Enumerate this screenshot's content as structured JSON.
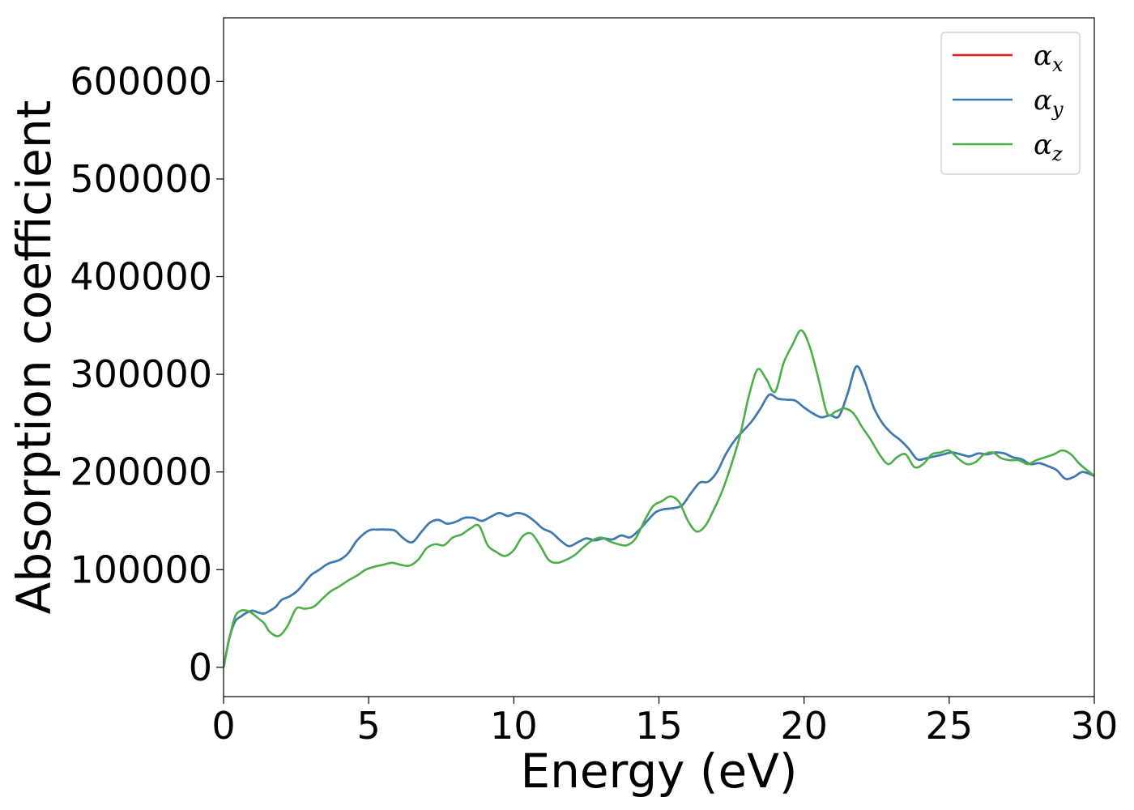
{
  "chart_data": {
    "type": "line",
    "xlabel": "Energy (eV)",
    "ylabel": "Absorption coefficient",
    "xlim": [
      0,
      30
    ],
    "ylim": [
      -30000,
      665000
    ],
    "xticks": [
      0,
      5,
      10,
      15,
      20,
      25,
      30
    ],
    "yticks": [
      0,
      100000,
      200000,
      300000,
      400000,
      500000,
      600000
    ],
    "grid": false,
    "legend_position": "top-right",
    "colors": {
      "x": "#e41a1c",
      "y": "#377eb8",
      "z": "#4daf4a"
    },
    "series": [
      {
        "name": "αx",
        "symbol": "α",
        "subscript": "x",
        "color": "#e41a1c",
        "x": [
          0,
          0.2,
          0.4,
          0.6,
          0.8,
          1.0,
          1.2,
          1.4,
          1.6,
          1.8,
          2.0,
          2.3,
          2.6,
          3.0,
          3.3,
          3.6,
          4.0,
          4.3,
          4.6,
          5.0,
          5.3,
          5.6,
          5.9,
          6.2,
          6.5,
          6.8,
          7.1,
          7.4,
          7.7,
          8.0,
          8.3,
          8.6,
          8.9,
          9.2,
          9.5,
          9.8,
          10.1,
          10.4,
          10.7,
          11.0,
          11.3,
          11.6,
          11.9,
          12.2,
          12.5,
          12.8,
          13.1,
          13.4,
          13.7,
          14.0,
          14.3,
          14.6,
          14.9,
          15.2,
          15.5,
          15.8,
          16.1,
          16.4,
          16.7,
          17.0,
          17.3,
          17.6,
          17.9,
          18.2,
          18.5,
          18.8,
          19.1,
          19.4,
          19.7,
          20.0,
          20.3,
          20.6,
          20.9,
          21.2,
          21.5,
          21.8,
          22.1,
          22.4,
          22.7,
          23.0,
          23.3,
          23.6,
          23.9,
          24.2,
          24.5,
          24.8,
          25.1,
          25.4,
          25.7,
          26.0,
          26.3,
          26.6,
          26.9,
          27.2,
          27.5,
          27.8,
          28.1,
          28.4,
          28.7,
          29.0,
          29.3,
          29.6,
          30.0
        ],
        "y": [
          0,
          30000,
          47000,
          52000,
          56000,
          58000,
          56000,
          55000,
          58000,
          62000,
          69000,
          73000,
          80000,
          94000,
          100000,
          106000,
          110000,
          117000,
          130000,
          140000,
          141000,
          141000,
          140000,
          132000,
          128000,
          138000,
          148000,
          151000,
          147000,
          149000,
          153000,
          153000,
          150000,
          154000,
          158000,
          155000,
          158000,
          156000,
          150000,
          142000,
          138000,
          130000,
          124000,
          128000,
          132000,
          130000,
          132000,
          131000,
          135000,
          133000,
          140000,
          150000,
          159000,
          162000,
          163000,
          166000,
          178000,
          189000,
          190000,
          200000,
          218000,
          232000,
          242000,
          252000,
          265000,
          279000,
          275000,
          274000,
          273000,
          266000,
          260000,
          256000,
          258000,
          257000,
          280000,
          308000,
          292000,
          266000,
          250000,
          240000,
          233000,
          224000,
          213000,
          214000,
          216000,
          218000,
          220000,
          218000,
          216000,
          219000,
          218000,
          220000,
          219000,
          215000,
          213000,
          208000,
          209000,
          206000,
          202000,
          193000,
          195000,
          200000,
          196000
        ]
      },
      {
        "name": "αy",
        "symbol": "α",
        "subscript": "y",
        "color": "#377eb8",
        "x": [
          0,
          0.2,
          0.4,
          0.6,
          0.8,
          1.0,
          1.2,
          1.4,
          1.6,
          1.8,
          2.0,
          2.3,
          2.6,
          3.0,
          3.3,
          3.6,
          4.0,
          4.3,
          4.6,
          5.0,
          5.3,
          5.6,
          5.9,
          6.2,
          6.5,
          6.8,
          7.1,
          7.4,
          7.7,
          8.0,
          8.3,
          8.6,
          8.9,
          9.2,
          9.5,
          9.8,
          10.1,
          10.4,
          10.7,
          11.0,
          11.3,
          11.6,
          11.9,
          12.2,
          12.5,
          12.8,
          13.1,
          13.4,
          13.7,
          14.0,
          14.3,
          14.6,
          14.9,
          15.2,
          15.5,
          15.8,
          16.1,
          16.4,
          16.7,
          17.0,
          17.3,
          17.6,
          17.9,
          18.2,
          18.5,
          18.8,
          19.1,
          19.4,
          19.7,
          20.0,
          20.3,
          20.6,
          20.9,
          21.2,
          21.5,
          21.8,
          22.1,
          22.4,
          22.7,
          23.0,
          23.3,
          23.6,
          23.9,
          24.2,
          24.5,
          24.8,
          25.1,
          25.4,
          25.7,
          26.0,
          26.3,
          26.6,
          26.9,
          27.2,
          27.5,
          27.8,
          28.1,
          28.4,
          28.7,
          29.0,
          29.3,
          29.6,
          30.0
        ],
        "y": [
          0,
          30000,
          47000,
          52000,
          56000,
          58000,
          56000,
          55000,
          58000,
          62000,
          69000,
          73000,
          80000,
          94000,
          100000,
          106000,
          110000,
          117000,
          130000,
          140000,
          141000,
          141000,
          140000,
          132000,
          128000,
          138000,
          148000,
          151000,
          147000,
          149000,
          153000,
          153000,
          150000,
          154000,
          158000,
          155000,
          158000,
          156000,
          150000,
          142000,
          138000,
          130000,
          124000,
          128000,
          132000,
          130000,
          132000,
          131000,
          135000,
          133000,
          140000,
          150000,
          159000,
          162000,
          163000,
          166000,
          178000,
          189000,
          190000,
          200000,
          218000,
          232000,
          242000,
          252000,
          265000,
          279000,
          275000,
          274000,
          273000,
          266000,
          260000,
          256000,
          258000,
          257000,
          280000,
          308000,
          292000,
          266000,
          250000,
          240000,
          233000,
          224000,
          213000,
          214000,
          216000,
          218000,
          220000,
          218000,
          216000,
          219000,
          218000,
          220000,
          219000,
          215000,
          213000,
          208000,
          209000,
          206000,
          202000,
          193000,
          195000,
          200000,
          196000
        ]
      },
      {
        "name": "αz",
        "symbol": "α",
        "subscript": "z",
        "color": "#4daf4a",
        "x": [
          0,
          0.2,
          0.4,
          0.6,
          0.8,
          1.0,
          1.2,
          1.4,
          1.6,
          1.9,
          2.2,
          2.5,
          2.8,
          3.1,
          3.4,
          3.7,
          4.0,
          4.3,
          4.6,
          4.9,
          5.2,
          5.5,
          5.8,
          6.1,
          6.4,
          6.7,
          7.0,
          7.3,
          7.6,
          7.9,
          8.2,
          8.5,
          8.8,
          9.1,
          9.4,
          9.7,
          10.0,
          10.3,
          10.6,
          10.9,
          11.2,
          11.5,
          11.8,
          12.1,
          12.4,
          12.7,
          13.0,
          13.3,
          13.6,
          13.9,
          14.2,
          14.5,
          14.8,
          15.1,
          15.4,
          15.7,
          16.0,
          16.3,
          16.6,
          16.9,
          17.2,
          17.5,
          17.8,
          18.1,
          18.4,
          18.7,
          19.0,
          19.3,
          19.6,
          19.9,
          20.2,
          20.5,
          20.8,
          21.1,
          21.4,
          21.7,
          22.0,
          22.3,
          22.6,
          22.9,
          23.2,
          23.5,
          23.8,
          24.1,
          24.4,
          24.7,
          25.0,
          25.3,
          25.6,
          25.9,
          26.2,
          26.5,
          26.8,
          27.1,
          27.4,
          27.7,
          28.0,
          28.3,
          28.6,
          28.9,
          29.2,
          29.5,
          30.0
        ],
        "y": [
          0,
          30000,
          52000,
          58000,
          58000,
          55000,
          50000,
          45000,
          36000,
          32000,
          42000,
          60000,
          60000,
          62000,
          70000,
          78000,
          83000,
          89000,
          94000,
          100000,
          103000,
          105000,
          107000,
          105000,
          104000,
          110000,
          122000,
          126000,
          125000,
          133000,
          136000,
          142000,
          145000,
          125000,
          118000,
          114000,
          120000,
          134000,
          137000,
          125000,
          110000,
          107000,
          110000,
          115000,
          123000,
          130000,
          133000,
          129000,
          126000,
          125000,
          132000,
          150000,
          165000,
          170000,
          175000,
          169000,
          150000,
          139000,
          145000,
          162000,
          182000,
          208000,
          238000,
          278000,
          305000,
          295000,
          282000,
          312000,
          330000,
          345000,
          328000,
          295000,
          260000,
          262000,
          265000,
          260000,
          246000,
          233000,
          218000,
          208000,
          215000,
          218000,
          205000,
          208000,
          218000,
          220000,
          222000,
          214000,
          208000,
          210000,
          218000,
          220000,
          214000,
          212000,
          212000,
          208000,
          212000,
          215000,
          218000,
          222000,
          218000,
          208000,
          196000
        ]
      }
    ]
  }
}
